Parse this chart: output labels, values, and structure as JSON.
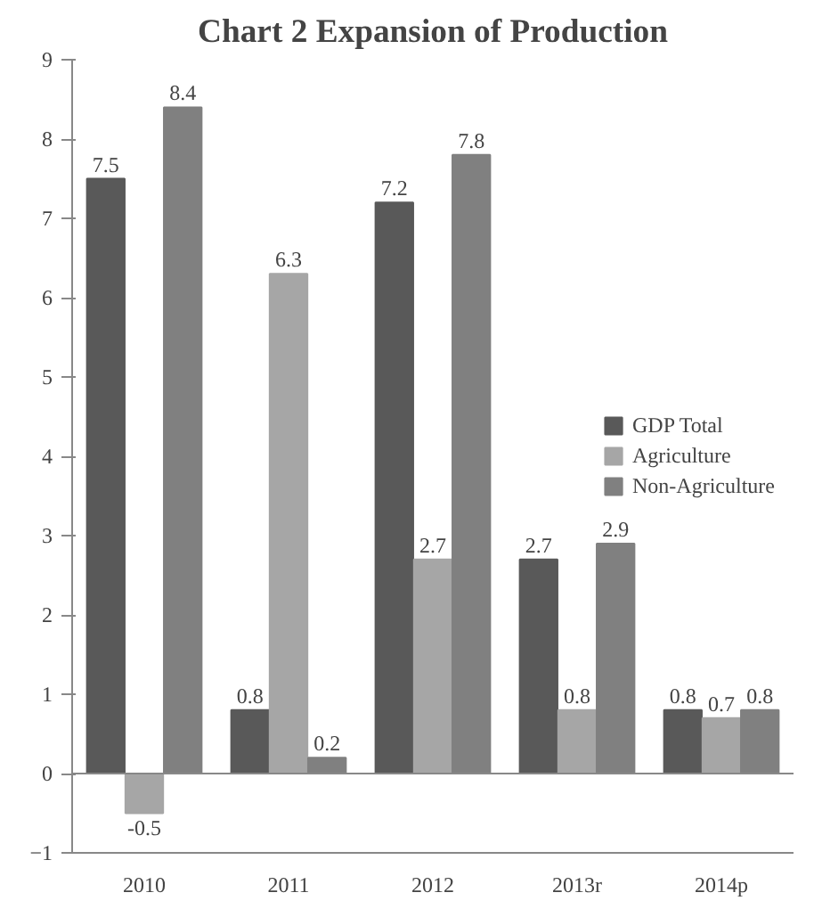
{
  "chart_data": {
    "type": "bar",
    "title": "Chart 2 Expansion of Production",
    "categories": [
      "2010",
      "2011",
      "2012",
      "2013r",
      "2014p"
    ],
    "series": [
      {
        "name": "GDP Total",
        "color": "#595959",
        "values": [
          7.5,
          0.8,
          7.2,
          2.7,
          0.8
        ]
      },
      {
        "name": "Agriculture",
        "color": "#a6a6a6",
        "values": [
          -0.5,
          6.3,
          2.7,
          0.8,
          0.7
        ]
      },
      {
        "name": "Non-Agriculture",
        "color": "#808080",
        "values": [
          8.4,
          0.2,
          7.8,
          2.9,
          0.8
        ]
      }
    ],
    "ylim": [
      -1,
      9
    ],
    "yticks": [
      -1,
      0,
      1,
      2,
      3,
      4,
      5,
      6,
      7,
      8,
      9
    ],
    "data_labels": true,
    "ref_lines": [
      {
        "axis": "y",
        "value": 0
      }
    ],
    "legend": "right",
    "grid": false
  }
}
